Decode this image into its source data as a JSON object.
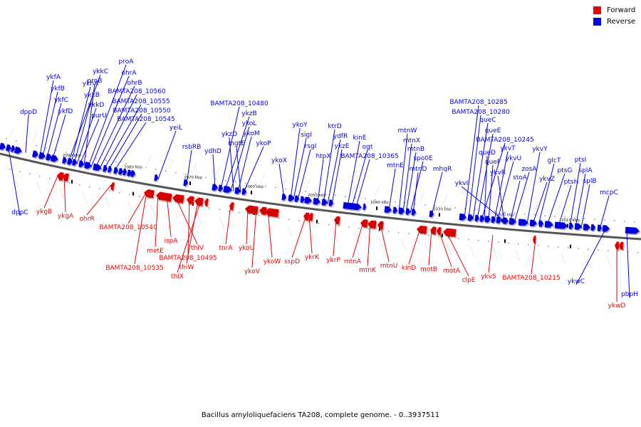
{
  "legend": {
    "forward_label": "Forward",
    "reverse_label": "Reverse",
    "forward_color": "#ee0000",
    "reverse_color": "#0000ee"
  },
  "caption": "Bacillus amyloliquefaciens TA208, complete genome. - 0..3937511",
  "scale_labels": [
    "2090 kbp",
    "2080 kbp",
    "2070 kbp",
    "2060 kbp",
    "2050 kbp",
    "2040 kbp",
    "2030 kbp",
    "2020 kbp",
    "2010 kbp"
  ],
  "reverse_genes": [
    "dppD",
    "ykfA",
    "ykfB",
    "ykfC",
    "ykfD",
    "dppC",
    "ykkC",
    "ykhA",
    "ykkB",
    "ykkD",
    "purU",
    "proB",
    "proA",
    "ohrA",
    "ohrB",
    "BAMTA208_10560",
    "BAMTA208_10555",
    "BAMTA208_10550",
    "BAMTA208_10545",
    "yeiL",
    "rsbRB",
    "ydhD",
    "BAMTA208_10480",
    "ykzB",
    "ykoL",
    "ykzD",
    "ykoM",
    "mgtE",
    "ykoP",
    "ykoX",
    "ykoY",
    "sigI",
    "rsgI",
    "htpX",
    "ktrD",
    "ydfR",
    "ykzE",
    "kinE",
    "ogt",
    "BAMTA208_10365",
    "mtnW",
    "mtnX",
    "mtnB",
    "mtnE",
    "spo0E",
    "mtnD",
    "mhqR",
    "BAMTA208_10285",
    "BAMTA208_10280",
    "queC",
    "queE",
    "BAMTA208_10245",
    "queD",
    "queF",
    "ykvT",
    "ykvU",
    "ykvR",
    "ykvI",
    "stoA",
    "zosA",
    "ykvY",
    "ykvZ",
    "glcT",
    "ptsG",
    "ptsH",
    "ptsI",
    "splA",
    "splB",
    "mcpC",
    "ykwC",
    "pbpH"
  ],
  "forward_genes": [
    "ykgB",
    "ykgA",
    "ohrR",
    "BAMTA208_10540",
    "metE",
    "BAMTA208_10535",
    "ispA",
    "thiV",
    "BAMTA208_10495",
    "thiW",
    "thiX",
    "tnrA",
    "ykoU",
    "ykoV",
    "ykoW",
    "sspD",
    "ykrK",
    "ykrP",
    "mtnA",
    "mtnK",
    "mtnU",
    "kinD",
    "motB",
    "motA",
    "clpE",
    "ykvS",
    "BAMTA208_10215",
    "ykwD"
  ]
}
